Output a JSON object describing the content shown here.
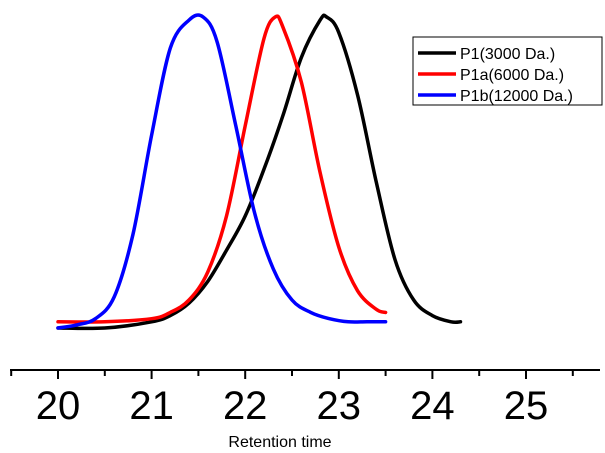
{
  "chart_data": {
    "type": "line",
    "title": "",
    "xlabel": "Retention time",
    "ylabel": "",
    "xlim": [
      20,
      25
    ],
    "ylim": [
      0,
      1.04
    ],
    "x_ticks": [
      "20",
      "21",
      "22",
      "23",
      "24",
      "25"
    ],
    "y_axis_shown": false,
    "grid": false,
    "legend_position": "top-right",
    "series": [
      {
        "name": "P1(3000 Da.)",
        "color": "#000000",
        "x": [
          20.0,
          20.5,
          21.0,
          21.2,
          21.4,
          21.6,
          21.8,
          22.0,
          22.2,
          22.4,
          22.6,
          22.8,
          22.87,
          23.0,
          23.2,
          23.4,
          23.6,
          23.8,
          24.0,
          24.2,
          24.3
        ],
        "y": [
          0.0,
          0.0,
          0.02,
          0.04,
          0.08,
          0.15,
          0.25,
          0.36,
          0.51,
          0.68,
          0.87,
          0.99,
          1.0,
          0.95,
          0.75,
          0.47,
          0.22,
          0.09,
          0.04,
          0.02,
          0.02
        ]
      },
      {
        "name": "P1a(6000 Da.)",
        "color": "#ff0000",
        "x": [
          20.0,
          20.5,
          21.0,
          21.2,
          21.4,
          21.6,
          21.8,
          22.0,
          22.2,
          22.32,
          22.4,
          22.6,
          22.8,
          23.0,
          23.2,
          23.4,
          23.5
        ],
        "y": [
          0.02,
          0.02,
          0.03,
          0.05,
          0.09,
          0.18,
          0.36,
          0.65,
          0.93,
          1.0,
          0.97,
          0.79,
          0.5,
          0.26,
          0.12,
          0.06,
          0.05
        ]
      },
      {
        "name": "P1b(12000 Da.)",
        "color": "#0000ff",
        "x": [
          20.0,
          20.2,
          20.4,
          20.6,
          20.8,
          21.0,
          21.2,
          21.4,
          21.55,
          21.7,
          21.9,
          22.1,
          22.3,
          22.5,
          22.7,
          22.9,
          23.1,
          23.3,
          23.5
        ],
        "y": [
          0.0,
          0.01,
          0.03,
          0.1,
          0.3,
          0.62,
          0.9,
          0.99,
          1.0,
          0.92,
          0.65,
          0.37,
          0.19,
          0.09,
          0.05,
          0.03,
          0.02,
          0.02,
          0.02
        ]
      }
    ]
  }
}
